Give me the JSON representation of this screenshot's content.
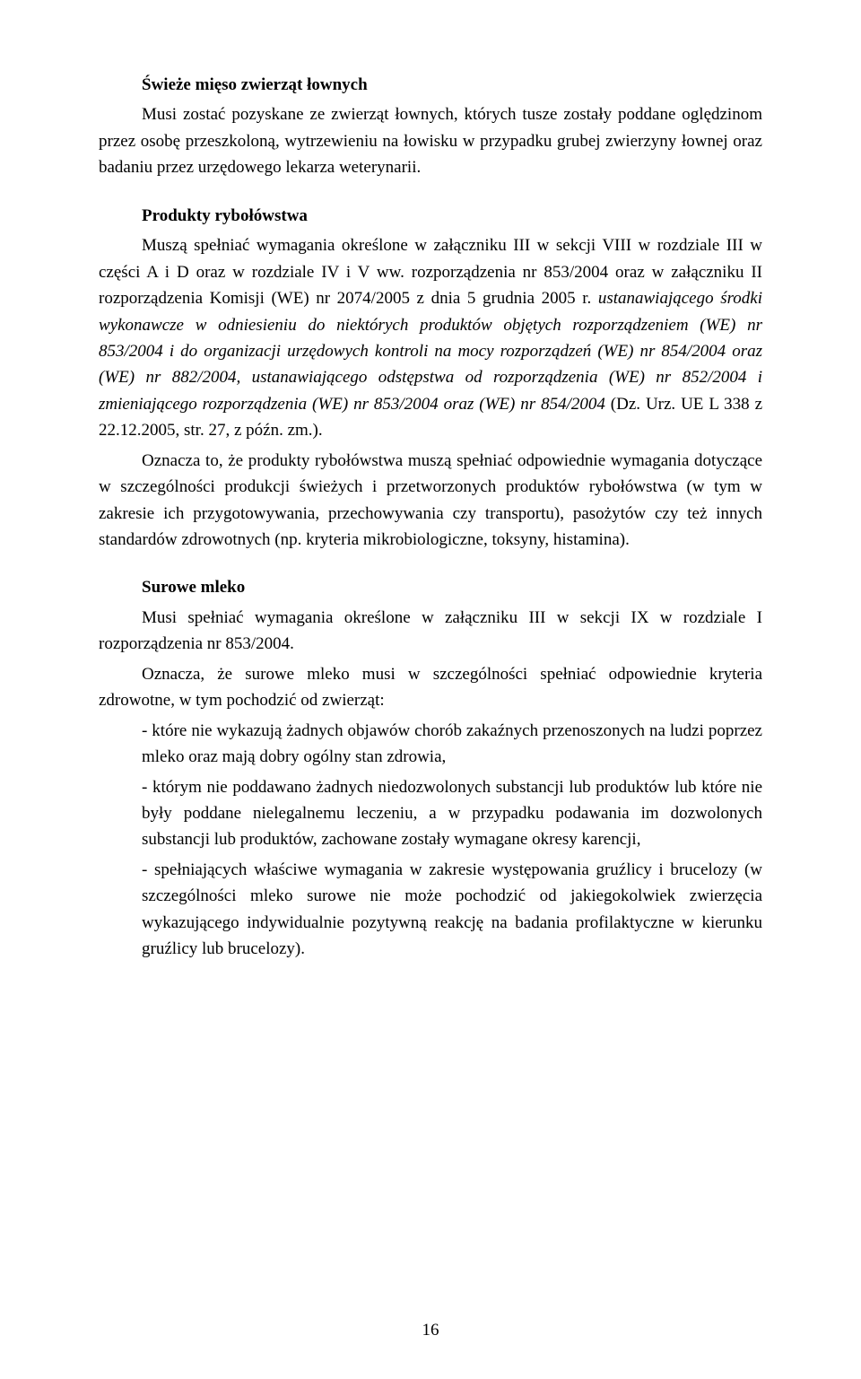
{
  "section1": {
    "heading": "Świeże mięso zwierząt łownych",
    "p1": "Musi zostać pozyskane ze zwierząt łownych, których tusze zostały poddane oględzinom przez osobę przeszkoloną, wytrzewieniu na łowisku w przypadku grubej zwierzyny łownej oraz badaniu przez urzędowego lekarza weterynarii."
  },
  "section2": {
    "heading": "Produkty rybołówstwa",
    "p1_a": "Muszą spełniać wymagania określone w załączniku III w sekcji VIII w rozdziale III w części A i D oraz w rozdziale IV i V ww. rozporządzenia nr 853/2004 oraz w załączniku II rozporządzenia Komisji (WE) nr 2074/2005 z dnia 5 grudnia 2005 r. ",
    "p1_b": "ustanawiającego środki wykonawcze w odniesieniu do niektórych produktów objętych rozporządzeniem (WE) nr 853/2004 i do organizacji urzędowych kontroli na mocy rozporządzeń (WE) nr 854/2004 oraz (WE) nr 882/2004, ustanawiającego odstępstwa od rozporządzenia (WE) nr 852/2004 i zmieniającego rozporządzenia (WE) nr 853/2004 oraz (WE) nr 854/2004",
    "p1_c": " (Dz. Urz. UE L 338 z 22.12.2005, str. 27, z późn. zm.).",
    "p2": "Oznacza to, że produkty rybołówstwa muszą spełniać odpowiednie wymagania dotyczące w szczególności produkcji świeżych i przetworzonych produktów rybołówstwa (w tym w zakresie ich przygotowywania, przechowywania czy transportu), pasożytów czy też innych standardów zdrowotnych (np. kryteria mikrobiologiczne, toksyny, histamina)."
  },
  "section3": {
    "heading": "Surowe mleko",
    "p1": "Musi spełniać wymagania określone w załączniku III w sekcji IX w rozdziale I rozporządzenia nr 853/2004.",
    "p2": "Oznacza, że surowe mleko musi w szczególności spełniać odpowiednie kryteria zdrowotne, w tym pochodzić od zwierząt:",
    "li1": "- które nie wykazują żadnych objawów chorób zakaźnych przenoszonych na ludzi poprzez mleko oraz mają dobry ogólny stan zdrowia,",
    "li2": "-  którym nie poddawano żadnych niedozwolonych substancji lub produktów lub które nie były poddane nielegalnemu leczeniu, a w przypadku podawania im dozwolonych substancji lub produktów, zachowane zostały wymagane okresy karencji,",
    "li3": "- spełniających właściwe wymagania  w zakresie występowania gruźlicy i brucelozy (w szczególności mleko surowe nie może pochodzić od jakiegokolwiek zwierzęcia wykazującego indywidualnie pozytywną reakcję na badania profilaktyczne w kierunku gruźlicy lub brucelozy)."
  },
  "page_number": "16",
  "colors": {
    "text": "#000000",
    "background": "#ffffff"
  },
  "typography": {
    "body_fontsize_pt": 14,
    "font_family": "Times New Roman"
  }
}
